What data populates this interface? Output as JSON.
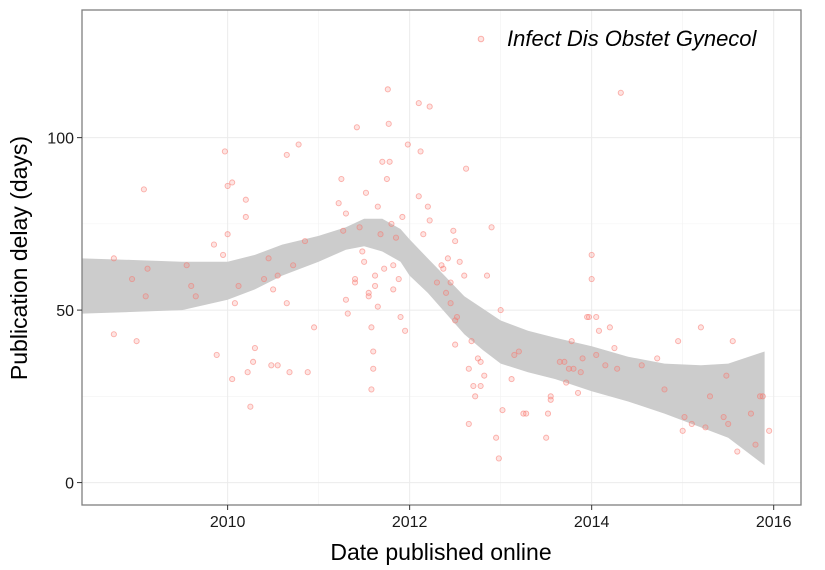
{
  "chart_data": {
    "type": "scatter",
    "xlabel": "Date published online",
    "ylabel": "Publication delay (days)",
    "x_ticks": [
      2010,
      2012,
      2014,
      2016
    ],
    "y_ticks": [
      0,
      50,
      100
    ],
    "xlim": [
      2008.4,
      2016.3
    ],
    "ylim": [
      -6.5,
      137
    ],
    "grid": true,
    "legend_position": "top-right",
    "series": [
      {
        "name": "Infect Dis Obstet Gynecol",
        "color": "#f8766d",
        "points": [
          [
            2008.75,
            65
          ],
          [
            2008.75,
            43
          ],
          [
            2008.95,
            59
          ],
          [
            2009.0,
            41
          ],
          [
            2009.08,
            85
          ],
          [
            2009.1,
            54
          ],
          [
            2009.12,
            62
          ],
          [
            2009.55,
            63
          ],
          [
            2009.6,
            57
          ],
          [
            2009.65,
            54
          ],
          [
            2009.85,
            69
          ],
          [
            2009.88,
            37
          ],
          [
            2009.95,
            66
          ],
          [
            2009.97,
            96
          ],
          [
            2010.0,
            72
          ],
          [
            2010.0,
            86
          ],
          [
            2010.05,
            87
          ],
          [
            2010.05,
            30
          ],
          [
            2010.08,
            52
          ],
          [
            2010.12,
            57
          ],
          [
            2010.2,
            82
          ],
          [
            2010.2,
            77
          ],
          [
            2010.22,
            32
          ],
          [
            2010.25,
            22
          ],
          [
            2010.28,
            35
          ],
          [
            2010.3,
            39
          ],
          [
            2010.4,
            59
          ],
          [
            2010.45,
            65
          ],
          [
            2010.48,
            34
          ],
          [
            2010.5,
            56
          ],
          [
            2010.55,
            34
          ],
          [
            2010.55,
            60
          ],
          [
            2010.65,
            95
          ],
          [
            2010.65,
            52
          ],
          [
            2010.68,
            32
          ],
          [
            2010.72,
            63
          ],
          [
            2010.78,
            98
          ],
          [
            2010.85,
            70
          ],
          [
            2010.88,
            32
          ],
          [
            2010.95,
            45
          ],
          [
            2011.22,
            81
          ],
          [
            2011.25,
            88
          ],
          [
            2011.27,
            73
          ],
          [
            2011.3,
            78
          ],
          [
            2011.3,
            53
          ],
          [
            2011.32,
            49
          ],
          [
            2011.4,
            59
          ],
          [
            2011.4,
            58
          ],
          [
            2011.42,
            103
          ],
          [
            2011.45,
            74
          ],
          [
            2011.48,
            67
          ],
          [
            2011.5,
            64
          ],
          [
            2011.52,
            84
          ],
          [
            2011.55,
            55
          ],
          [
            2011.55,
            54
          ],
          [
            2011.58,
            45
          ],
          [
            2011.58,
            27
          ],
          [
            2011.6,
            38
          ],
          [
            2011.6,
            33
          ],
          [
            2011.62,
            57
          ],
          [
            2011.62,
            60
          ],
          [
            2011.65,
            80
          ],
          [
            2011.65,
            51
          ],
          [
            2011.68,
            72
          ],
          [
            2011.7,
            93
          ],
          [
            2011.72,
            62
          ],
          [
            2011.75,
            88
          ],
          [
            2011.76,
            114
          ],
          [
            2011.77,
            104
          ],
          [
            2011.78,
            93
          ],
          [
            2011.8,
            75
          ],
          [
            2011.82,
            63
          ],
          [
            2011.82,
            56
          ],
          [
            2011.85,
            71
          ],
          [
            2011.88,
            59
          ],
          [
            2011.9,
            48
          ],
          [
            2011.92,
            77
          ],
          [
            2011.95,
            44
          ],
          [
            2011.98,
            98
          ],
          [
            2012.1,
            110
          ],
          [
            2012.1,
            83
          ],
          [
            2012.12,
            96
          ],
          [
            2012.15,
            72
          ],
          [
            2012.2,
            80
          ],
          [
            2012.22,
            109
          ],
          [
            2012.22,
            76
          ],
          [
            2012.3,
            58
          ],
          [
            2012.35,
            63
          ],
          [
            2012.37,
            62
          ],
          [
            2012.4,
            55
          ],
          [
            2012.42,
            65
          ],
          [
            2012.45,
            58
          ],
          [
            2012.45,
            52
          ],
          [
            2012.48,
            73
          ],
          [
            2012.5,
            70
          ],
          [
            2012.5,
            47
          ],
          [
            2012.5,
            40
          ],
          [
            2012.52,
            48
          ],
          [
            2012.55,
            64
          ],
          [
            2012.6,
            60
          ],
          [
            2012.62,
            91
          ],
          [
            2012.65,
            33
          ],
          [
            2012.65,
            17
          ],
          [
            2012.68,
            41
          ],
          [
            2012.7,
            28
          ],
          [
            2012.72,
            25
          ],
          [
            2012.75,
            36
          ],
          [
            2012.78,
            35
          ],
          [
            2012.78,
            28
          ],
          [
            2012.82,
            31
          ],
          [
            2012.85,
            60
          ],
          [
            2012.9,
            74
          ],
          [
            2012.95,
            13
          ],
          [
            2012.98,
            7
          ],
          [
            2013.0,
            50
          ],
          [
            2013.02,
            21
          ],
          [
            2013.12,
            30
          ],
          [
            2013.15,
            37
          ],
          [
            2013.2,
            38
          ],
          [
            2013.25,
            20
          ],
          [
            2013.28,
            20
          ],
          [
            2013.5,
            13
          ],
          [
            2013.52,
            20
          ],
          [
            2013.55,
            24
          ],
          [
            2013.55,
            25
          ],
          [
            2013.65,
            35
          ],
          [
            2013.7,
            35
          ],
          [
            2013.72,
            29
          ],
          [
            2013.75,
            33
          ],
          [
            2013.78,
            41
          ],
          [
            2013.8,
            33
          ],
          [
            2013.85,
            26
          ],
          [
            2013.88,
            32
          ],
          [
            2013.9,
            36
          ],
          [
            2013.95,
            48
          ],
          [
            2013.97,
            48
          ],
          [
            2014.0,
            66
          ],
          [
            2014.0,
            59
          ],
          [
            2014.05,
            48
          ],
          [
            2014.05,
            37
          ],
          [
            2014.08,
            44
          ],
          [
            2014.15,
            34
          ],
          [
            2014.2,
            45
          ],
          [
            2014.25,
            39
          ],
          [
            2014.28,
            33
          ],
          [
            2014.32,
            113
          ],
          [
            2014.55,
            34
          ],
          [
            2014.72,
            36
          ],
          [
            2014.8,
            27
          ],
          [
            2014.95,
            41
          ],
          [
            2015.0,
            15
          ],
          [
            2015.02,
            19
          ],
          [
            2015.1,
            17
          ],
          [
            2015.2,
            45
          ],
          [
            2015.25,
            16
          ],
          [
            2015.3,
            25
          ],
          [
            2015.45,
            19
          ],
          [
            2015.48,
            31
          ],
          [
            2015.5,
            17
          ],
          [
            2015.55,
            41
          ],
          [
            2015.6,
            9
          ],
          [
            2015.75,
            20
          ],
          [
            2015.8,
            11
          ],
          [
            2015.85,
            25
          ],
          [
            2015.88,
            25
          ],
          [
            2015.95,
            15
          ]
        ]
      }
    ],
    "smooth": {
      "x": [
        2008.4,
        2009.0,
        2009.5,
        2010.0,
        2010.3,
        2010.6,
        2011.0,
        2011.3,
        2011.5,
        2011.7,
        2011.9,
        2012.0,
        2012.2,
        2012.4,
        2012.6,
        2012.8,
        2013.0,
        2013.3,
        2013.6,
        2014.0,
        2014.4,
        2014.8,
        2015.2,
        2015.5,
        2015.9
      ],
      "lower": [
        49,
        49.5,
        50,
        53,
        56,
        60,
        64,
        67.5,
        68.5,
        67,
        64,
        60,
        55,
        49,
        43,
        38.5,
        34.5,
        32,
        30,
        26.5,
        23.5,
        20,
        16,
        13,
        5
      ],
      "upper": [
        65,
        64.5,
        64,
        64,
        66,
        69,
        71.5,
        74,
        76.5,
        76.5,
        73.5,
        70.5,
        65,
        59.5,
        54,
        50.5,
        47,
        44,
        42,
        39.5,
        36.5,
        34.5,
        34,
        34.5,
        38
      ],
      "fill": "#cccccc"
    }
  }
}
